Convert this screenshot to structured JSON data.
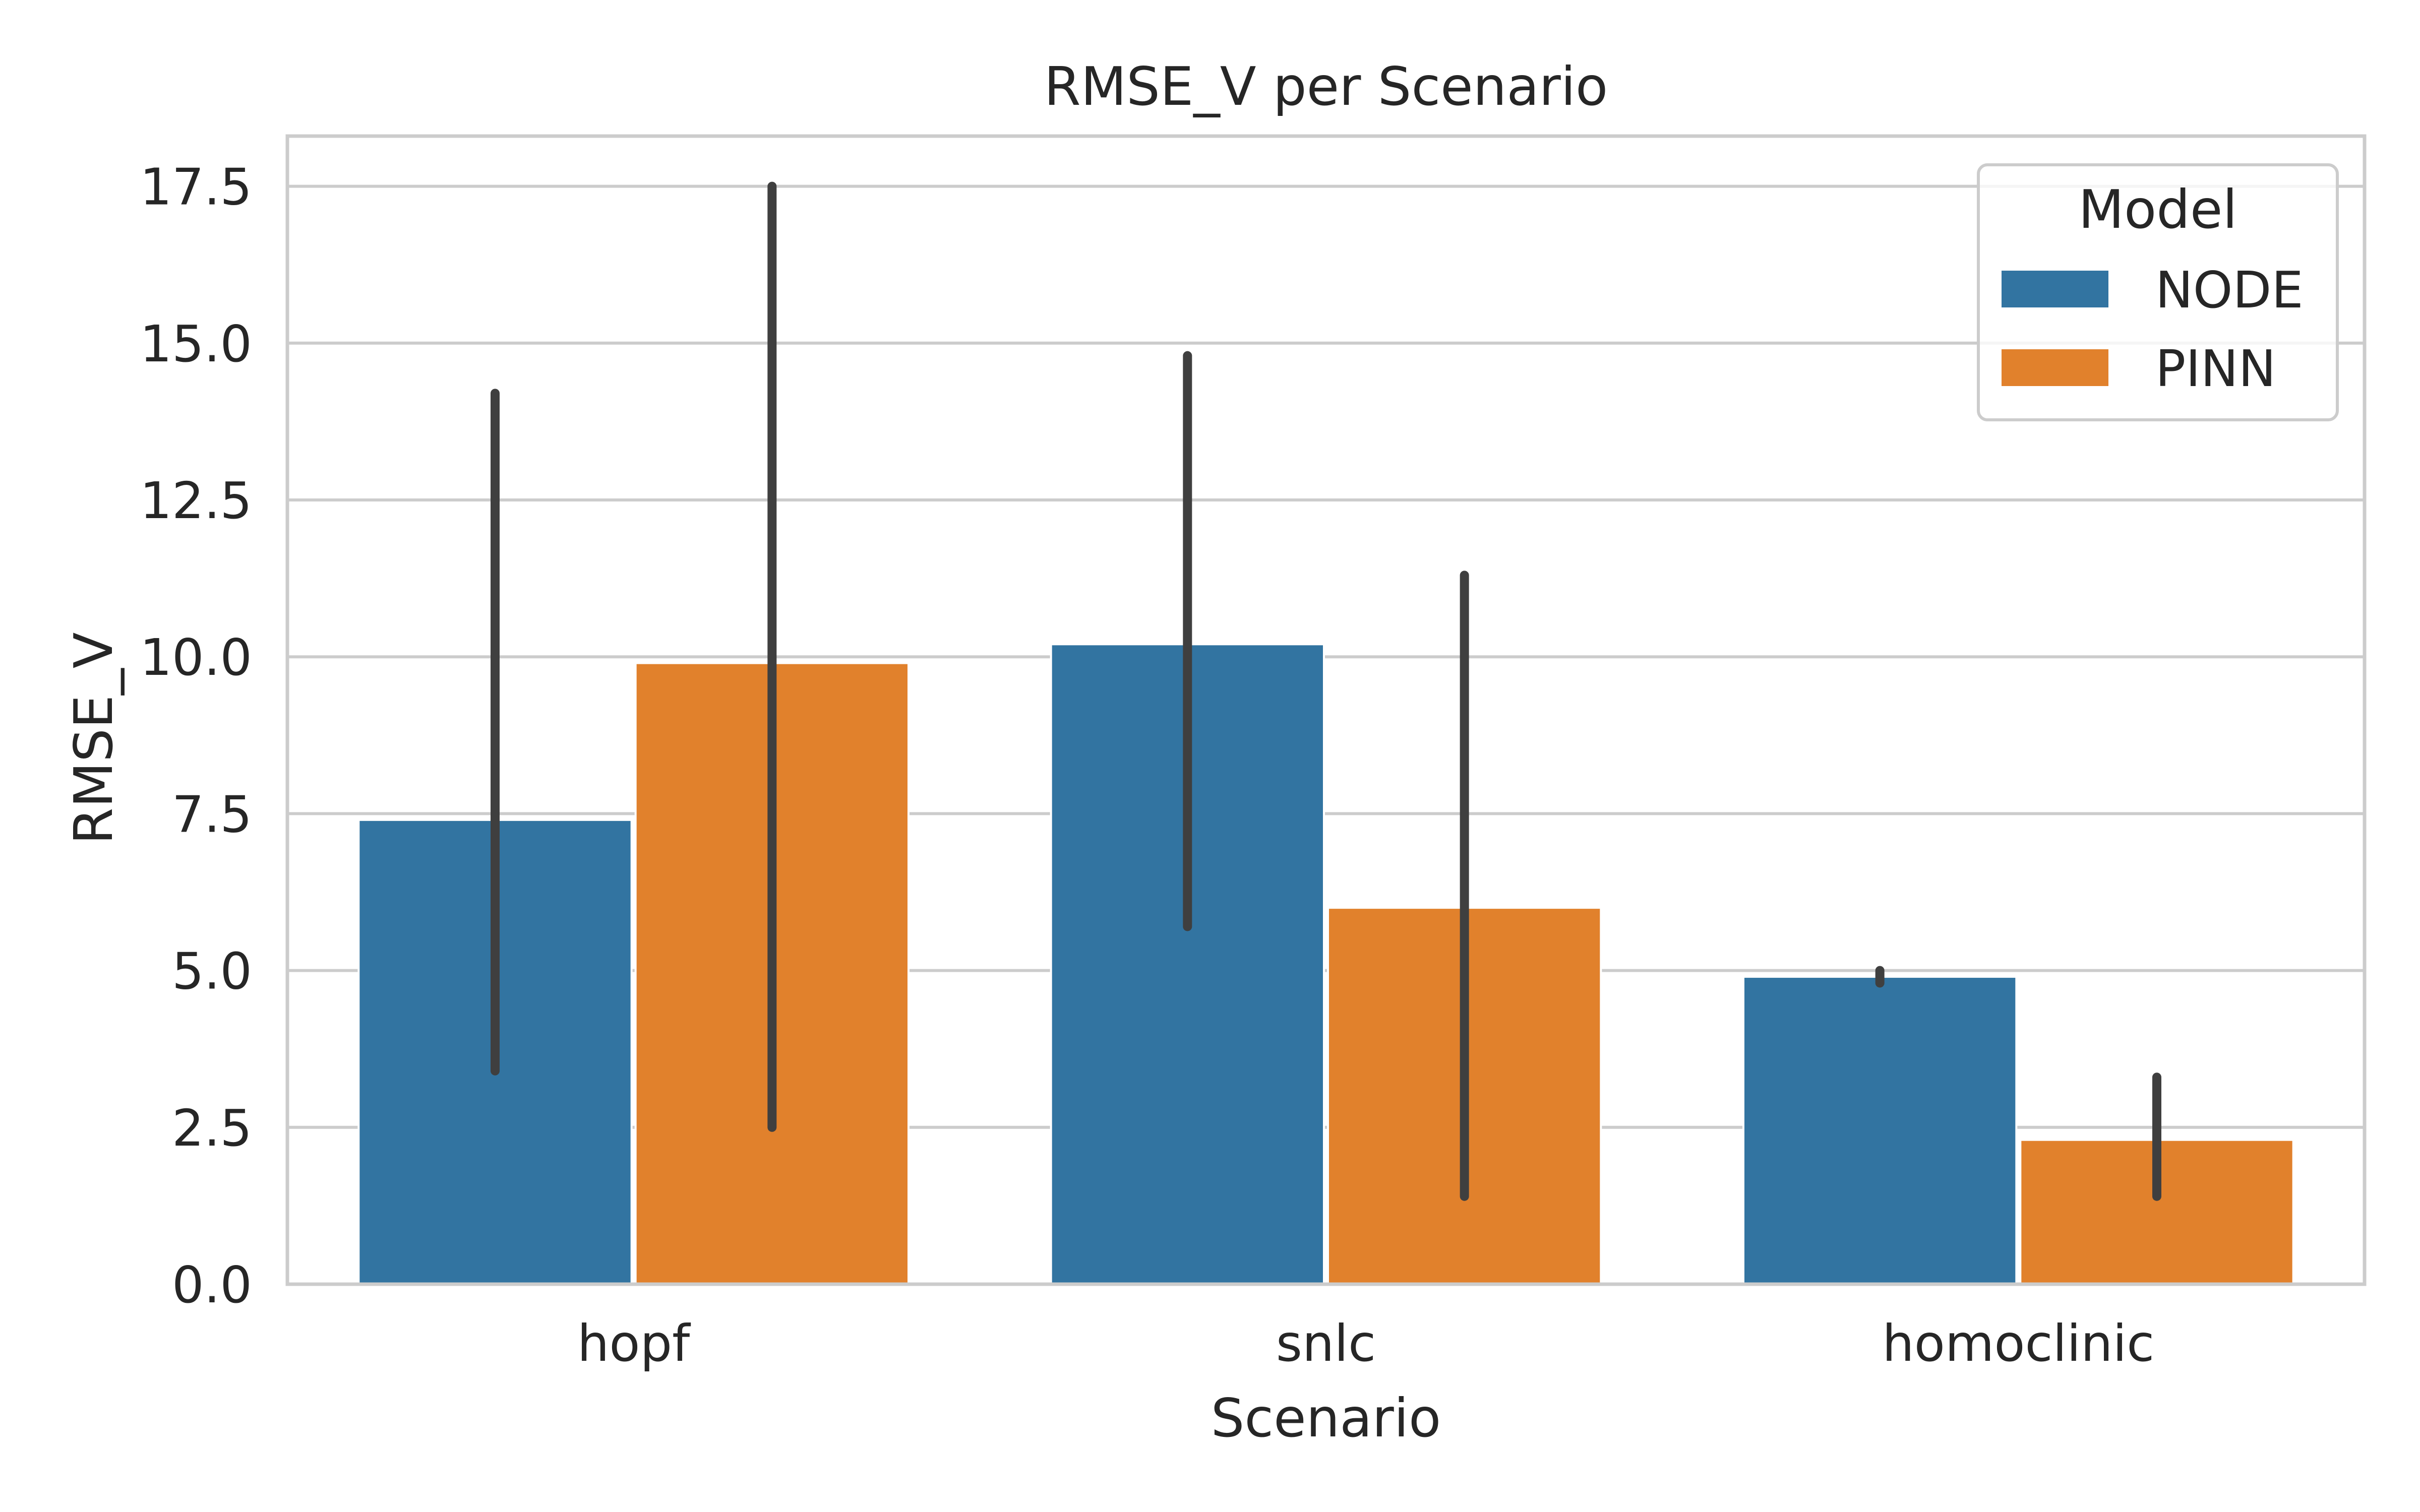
{
  "chart_data": {
    "type": "bar",
    "title": "RMSE_V per Scenario",
    "xlabel": "Scenario",
    "ylabel": "RMSE_V",
    "categories": [
      "hopf",
      "snlc",
      "homoclinic"
    ],
    "ylim": [
      0,
      18.3
    ],
    "yticks": [
      0.0,
      2.5,
      5.0,
      7.5,
      10.0,
      12.5,
      15.0,
      17.5
    ],
    "ytick_labels": [
      "0.0",
      "2.5",
      "5.0",
      "7.5",
      "10.0",
      "12.5",
      "15.0",
      "17.5"
    ],
    "grid": true,
    "legend": {
      "title": "Model",
      "placement": "top-right"
    },
    "series": [
      {
        "name": "NODE",
        "color": "#3274a1",
        "values": [
          7.4,
          10.2,
          4.9
        ],
        "error_low": [
          3.4,
          5.7,
          4.8
        ],
        "error_high": [
          14.2,
          14.8,
          5.0
        ]
      },
      {
        "name": "PINN",
        "color": "#e1812c",
        "values": [
          9.9,
          6.0,
          2.3
        ],
        "error_low": [
          2.5,
          1.4,
          1.4
        ],
        "error_high": [
          17.5,
          11.3,
          3.3
        ]
      }
    ]
  }
}
